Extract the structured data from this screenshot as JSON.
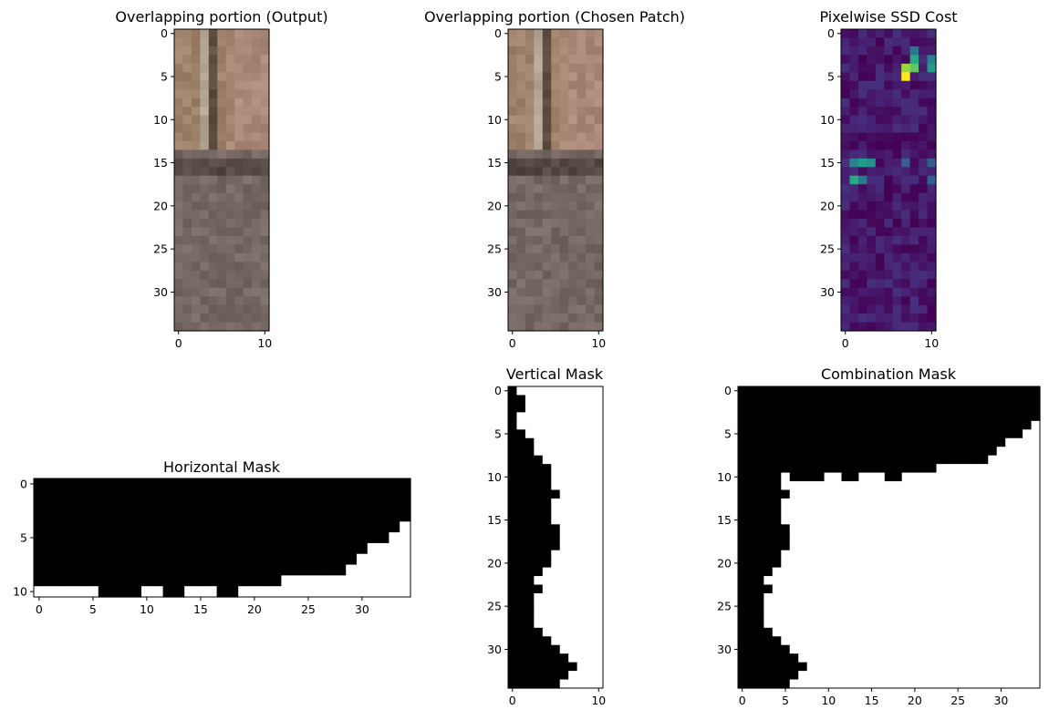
{
  "figure": {
    "panels": [
      {
        "id": "out",
        "title": "Overlapping portion (Output)",
        "type": "image",
        "rows": 35,
        "cols": 11,
        "xticks": [
          0,
          10
        ],
        "yticks": [
          0,
          5,
          10,
          15,
          20,
          25,
          30
        ]
      },
      {
        "id": "patch",
        "title": "Overlapping portion (Chosen Patch)",
        "type": "image",
        "rows": 35,
        "cols": 11,
        "xticks": [
          0,
          10
        ],
        "yticks": [
          0,
          5,
          10,
          15,
          20,
          25,
          30
        ]
      },
      {
        "id": "ssd",
        "title": "Pixelwise SSD Cost",
        "type": "heatmap",
        "rows": 35,
        "cols": 11,
        "xticks": [
          0,
          10
        ],
        "yticks": [
          0,
          5,
          10,
          15,
          20,
          25,
          30
        ]
      },
      {
        "id": "hmask",
        "title": "Horizontal Mask",
        "type": "heatmap",
        "rows": 11,
        "cols": 35,
        "xticks": [
          0,
          5,
          10,
          15,
          20,
          25,
          30
        ],
        "yticks": [
          0,
          5,
          10
        ]
      },
      {
        "id": "vmask",
        "title": "Vertical Mask",
        "type": "heatmap",
        "rows": 35,
        "cols": 11,
        "xticks": [
          0,
          10
        ],
        "yticks": [
          0,
          5,
          10,
          15,
          20,
          25,
          30
        ]
      },
      {
        "id": "cmask",
        "title": "Combination Mask",
        "type": "heatmap",
        "rows": 35,
        "cols": 35,
        "xticks": [
          0,
          5,
          10,
          15,
          20,
          25,
          30
        ],
        "yticks": [
          0,
          5,
          10,
          15,
          20,
          25,
          30
        ]
      }
    ]
  },
  "chart_data": [
    {
      "type": "heatmap",
      "title": "Overlapping portion (Output)",
      "description_values": "RGB texture patch 35 rows x 11 cols",
      "colors": {
        "warm_top": "#a88a78",
        "dark_band": "#4f4440",
        "mid": "#7a6e68",
        "light_col": "#b8aa9a"
      }
    },
    {
      "type": "heatmap",
      "title": "Overlapping portion (Chosen Patch)",
      "colors": {
        "warm_top": "#a88a78",
        "dark_band": "#4f4440",
        "mid": "#7a6e68",
        "light_col": "#b8aa9a"
      }
    },
    {
      "type": "heatmap",
      "title": "Pixelwise SSD Cost",
      "colormap": "viridis",
      "hot_cells": [
        {
          "row": 5,
          "col": 7,
          "level": 1.0
        },
        {
          "row": 4,
          "col": 7,
          "level": 0.85
        },
        {
          "row": 4,
          "col": 8,
          "level": 0.75
        },
        {
          "row": 3,
          "col": 8,
          "level": 0.6
        },
        {
          "row": 4,
          "col": 10,
          "level": 0.55
        },
        {
          "row": 3,
          "col": 10,
          "level": 0.45
        },
        {
          "row": 2,
          "col": 8,
          "level": 0.4
        },
        {
          "row": 15,
          "col": 2,
          "level": 0.55
        },
        {
          "row": 15,
          "col": 1,
          "level": 0.45
        },
        {
          "row": 15,
          "col": 3,
          "level": 0.5
        },
        {
          "row": 17,
          "col": 1,
          "level": 0.6
        },
        {
          "row": 17,
          "col": 2,
          "level": 0.4
        },
        {
          "row": 15,
          "col": 7,
          "level": 0.3
        },
        {
          "row": 15,
          "col": 10,
          "level": 0.3
        },
        {
          "row": 17,
          "col": 10,
          "level": 0.3
        }
      ]
    },
    {
      "type": "heatmap",
      "title": "Horizontal Mask",
      "colormap": "gray",
      "black_rows_by_col": "row r black where r <= boundary[c]",
      "boundary": [
        9,
        9,
        9,
        9,
        9,
        9,
        10,
        10,
        10,
        10,
        9,
        9,
        10,
        10,
        9,
        9,
        9,
        10,
        10,
        9,
        9,
        9,
        9,
        8,
        8,
        8,
        8,
        8,
        8,
        7,
        6,
        5,
        5,
        4,
        3
      ]
    },
    {
      "type": "heatmap",
      "title": "Vertical Mask",
      "colormap": "gray",
      "black_cols_by_row": "col c black where c <= boundary[r]",
      "boundary": [
        0,
        1,
        1,
        0,
        0,
        1,
        2,
        2,
        3,
        4,
        4,
        4,
        5,
        4,
        4,
        4,
        5,
        5,
        5,
        4,
        4,
        3,
        2,
        3,
        2,
        2,
        2,
        2,
        3,
        4,
        5,
        6,
        7,
        6,
        5
      ]
    },
    {
      "type": "heatmap",
      "title": "Combination Mask",
      "colormap": "gray"
    }
  ]
}
